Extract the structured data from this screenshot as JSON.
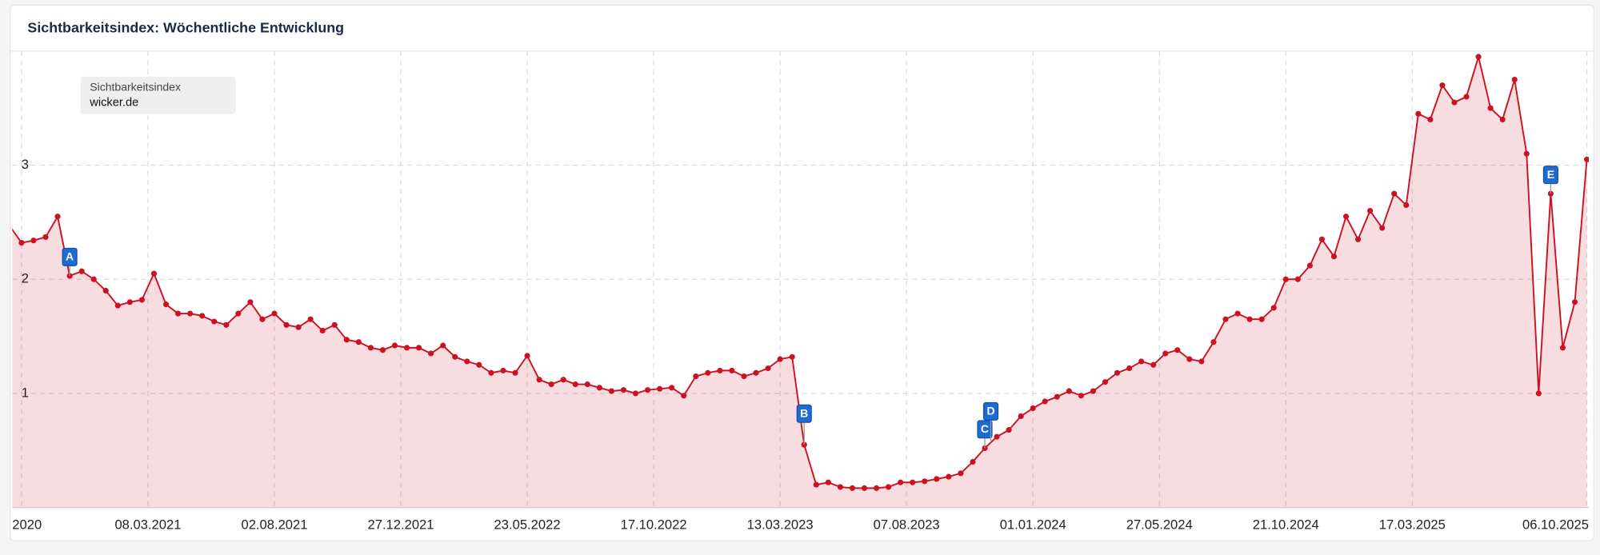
{
  "chart_data": {
    "type": "area",
    "title": "Sichtbarkeitsindex: Wöchentliche Entwicklung",
    "legend_title": "Sichtbarkeitsindex",
    "x": [
      "28.09.2020",
      "12.10.2020",
      "26.10.2020",
      "09.11.2020",
      "23.11.2020",
      "07.12.2020",
      "21.12.2020",
      "04.01.2021",
      "18.01.2021",
      "01.02.2021",
      "15.02.2021",
      "01.03.2021",
      "15.03.2021",
      "29.03.2021",
      "12.04.2021",
      "26.04.2021",
      "10.05.2021",
      "24.05.2021",
      "07.06.2021",
      "21.06.2021",
      "05.07.2021",
      "19.07.2021",
      "02.08.2021",
      "16.08.2021",
      "30.08.2021",
      "13.09.2021",
      "27.09.2021",
      "11.10.2021",
      "25.10.2021",
      "08.11.2021",
      "22.11.2021",
      "06.12.2021",
      "20.12.2021",
      "03.01.2022",
      "17.01.2022",
      "31.01.2022",
      "14.02.2022",
      "28.02.2022",
      "14.03.2022",
      "28.03.2022",
      "11.04.2022",
      "25.04.2022",
      "09.05.2022",
      "23.05.2022",
      "06.06.2022",
      "20.06.2022",
      "04.07.2022",
      "18.07.2022",
      "01.08.2022",
      "15.08.2022",
      "29.08.2022",
      "12.09.2022",
      "26.09.2022",
      "10.10.2022",
      "24.10.2022",
      "07.11.2022",
      "21.11.2022",
      "05.12.2022",
      "19.12.2022",
      "02.01.2023",
      "16.01.2023",
      "30.01.2023",
      "13.02.2023",
      "27.02.2023",
      "13.03.2023",
      "27.03.2023",
      "10.04.2023",
      "24.04.2023",
      "08.05.2023",
      "22.05.2023",
      "05.06.2023",
      "19.06.2023",
      "03.07.2023",
      "17.07.2023",
      "31.07.2023",
      "14.08.2023",
      "28.08.2023",
      "11.09.2023",
      "25.09.2023",
      "09.10.2023",
      "23.10.2023",
      "06.11.2023",
      "20.11.2023",
      "04.12.2023",
      "18.12.2023",
      "01.01.2024",
      "15.01.2024",
      "29.01.2024",
      "12.02.2024",
      "26.02.2024",
      "11.03.2024",
      "25.03.2024",
      "08.04.2024",
      "22.04.2024",
      "06.05.2024",
      "20.05.2024",
      "03.06.2024",
      "17.06.2024",
      "01.07.2024",
      "15.07.2024",
      "29.07.2024",
      "12.08.2024",
      "26.08.2024",
      "09.09.2024",
      "23.09.2024",
      "07.10.2024",
      "21.10.2024",
      "04.11.2024",
      "18.11.2024",
      "02.12.2024",
      "16.12.2024",
      "30.12.2024",
      "13.01.2025",
      "27.01.2025",
      "10.02.2025",
      "24.02.2025",
      "10.03.2025",
      "24.03.2025",
      "07.04.2025",
      "21.04.2025",
      "05.05.2025",
      "19.05.2025",
      "02.06.2025",
      "16.06.2025",
      "30.06.2025",
      "14.07.2025",
      "28.07.2025",
      "11.08.2025",
      "25.08.2025",
      "08.09.2025",
      "22.09.2025",
      "06.10.2025"
    ],
    "series": [
      {
        "name": "wicker.de",
        "color": "#cc1122",
        "values": [
          2.47,
          2.32,
          2.34,
          2.37,
          2.55,
          2.03,
          2.07,
          2.0,
          1.9,
          1.77,
          1.8,
          1.82,
          2.05,
          1.78,
          1.7,
          1.7,
          1.68,
          1.63,
          1.6,
          1.7,
          1.8,
          1.65,
          1.7,
          1.6,
          1.58,
          1.65,
          1.55,
          1.6,
          1.47,
          1.45,
          1.4,
          1.38,
          1.42,
          1.4,
          1.4,
          1.35,
          1.42,
          1.32,
          1.28,
          1.25,
          1.18,
          1.2,
          1.18,
          1.33,
          1.12,
          1.08,
          1.12,
          1.08,
          1.08,
          1.05,
          1.02,
          1.03,
          1.0,
          1.03,
          1.04,
          1.05,
          0.98,
          1.15,
          1.18,
          1.2,
          1.2,
          1.15,
          1.18,
          1.22,
          1.3,
          1.32,
          0.55,
          0.2,
          0.22,
          0.18,
          0.17,
          0.17,
          0.17,
          0.18,
          0.22,
          0.22,
          0.23,
          0.25,
          0.27,
          0.3,
          0.4,
          0.52,
          0.62,
          0.68,
          0.8,
          0.87,
          0.93,
          0.97,
          1.02,
          0.98,
          1.02,
          1.1,
          1.18,
          1.22,
          1.28,
          1.25,
          1.35,
          1.38,
          1.3,
          1.28,
          1.45,
          1.65,
          1.7,
          1.65,
          1.65,
          1.75,
          2.0,
          2.0,
          2.12,
          2.35,
          2.2,
          2.55,
          2.35,
          2.6,
          2.45,
          2.75,
          2.65,
          3.45,
          3.4,
          3.7,
          3.55,
          3.6,
          3.95,
          3.5,
          3.4,
          3.75,
          3.1,
          1.0,
          2.75,
          1.4,
          1.8,
          3.05
        ]
      }
    ],
    "xlim": [
      "28.09.2020",
      "13.10.2025"
    ],
    "xticks": [
      {
        "value": "12.10.2020",
        "label": "2020"
      },
      "08.03.2021",
      "02.08.2021",
      "27.12.2021",
      "23.05.2022",
      "17.10.2022",
      "13.03.2023",
      "07.08.2023",
      "01.01.2024",
      "27.05.2024",
      "21.10.2024",
      "17.03.2025",
      "06.10.2025"
    ],
    "ylim": [
      0,
      4
    ],
    "yticks": [
      1,
      2,
      3
    ],
    "grid": true,
    "annotations": [
      {
        "label": "A",
        "x": "07.12.2020"
      },
      {
        "label": "B",
        "x": "10.04.2023"
      },
      {
        "label": "C",
        "x": "06.11.2023"
      },
      {
        "label": "D",
        "x": "13.11.2023"
      },
      {
        "label": "E",
        "x": "25.08.2025"
      }
    ]
  }
}
